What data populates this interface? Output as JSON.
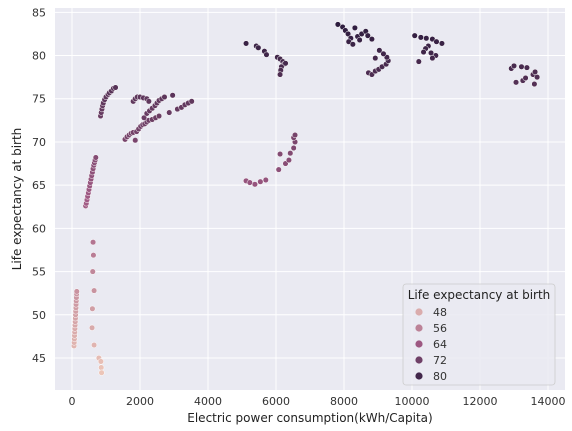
{
  "chart_data": {
    "type": "scatter",
    "xlabel": "Electric power consumption(kWh/Capita)",
    "ylabel": "Life expectancy at birth",
    "xlim": [
      -500,
      14500
    ],
    "ylim": [
      41.3,
      85.5
    ],
    "xticks": [
      0,
      2000,
      4000,
      6000,
      8000,
      10000,
      12000,
      14000
    ],
    "yticks": [
      45,
      50,
      55,
      60,
      65,
      70,
      75,
      80,
      85
    ],
    "grid": true,
    "legend": {
      "title": "Life expectancy at birth",
      "placement": "bottom-right",
      "entries": [
        {
          "label": "48",
          "value": 48
        },
        {
          "label": "56",
          "value": 56
        },
        {
          "label": "64",
          "value": 64
        },
        {
          "label": "72",
          "value": 72
        },
        {
          "label": "80",
          "value": 80
        }
      ]
    },
    "hue_range": [
      43,
      84
    ],
    "colors": {
      "low": "#edc7b9",
      "mid": "#a05a84",
      "high": "#2b1b3d",
      "background": "#eaeaf2",
      "grid": "#ffffff"
    },
    "points": [
      {
        "x": 60,
        "y": 46.4
      },
      {
        "x": 65,
        "y": 46.8
      },
      {
        "x": 70,
        "y": 47.2
      },
      {
        "x": 75,
        "y": 47.6
      },
      {
        "x": 80,
        "y": 48.0
      },
      {
        "x": 85,
        "y": 48.4
      },
      {
        "x": 90,
        "y": 48.8
      },
      {
        "x": 95,
        "y": 49.2
      },
      {
        "x": 100,
        "y": 49.6
      },
      {
        "x": 105,
        "y": 50.0
      },
      {
        "x": 110,
        "y": 50.4
      },
      {
        "x": 115,
        "y": 50.8
      },
      {
        "x": 120,
        "y": 51.2
      },
      {
        "x": 125,
        "y": 51.6
      },
      {
        "x": 130,
        "y": 52.0
      },
      {
        "x": 135,
        "y": 52.4
      },
      {
        "x": 140,
        "y": 52.7
      },
      {
        "x": 790,
        "y": 45.0
      },
      {
        "x": 850,
        "y": 44.6
      },
      {
        "x": 860,
        "y": 43.9
      },
      {
        "x": 870,
        "y": 43.3
      },
      {
        "x": 620,
        "y": 58.4
      },
      {
        "x": 630,
        "y": 56.9
      },
      {
        "x": 610,
        "y": 55.0
      },
      {
        "x": 650,
        "y": 52.8
      },
      {
        "x": 600,
        "y": 50.7
      },
      {
        "x": 590,
        "y": 48.5
      },
      {
        "x": 650,
        "y": 46.5
      },
      {
        "x": 400,
        "y": 62.6
      },
      {
        "x": 420,
        "y": 62.9
      },
      {
        "x": 440,
        "y": 63.3
      },
      {
        "x": 460,
        "y": 63.7
      },
      {
        "x": 480,
        "y": 64.1
      },
      {
        "x": 500,
        "y": 64.5
      },
      {
        "x": 520,
        "y": 64.9
      },
      {
        "x": 540,
        "y": 65.3
      },
      {
        "x": 560,
        "y": 65.7
      },
      {
        "x": 580,
        "y": 66.1
      },
      {
        "x": 600,
        "y": 66.5
      },
      {
        "x": 620,
        "y": 66.9
      },
      {
        "x": 640,
        "y": 67.3
      },
      {
        "x": 660,
        "y": 67.6
      },
      {
        "x": 680,
        "y": 67.9
      },
      {
        "x": 700,
        "y": 68.2
      },
      {
        "x": 840,
        "y": 73.0
      },
      {
        "x": 860,
        "y": 73.4
      },
      {
        "x": 880,
        "y": 73.8
      },
      {
        "x": 900,
        "y": 74.2
      },
      {
        "x": 920,
        "y": 74.5
      },
      {
        "x": 960,
        "y": 74.9
      },
      {
        "x": 1000,
        "y": 75.2
      },
      {
        "x": 1060,
        "y": 75.5
      },
      {
        "x": 1100,
        "y": 75.7
      },
      {
        "x": 1160,
        "y": 75.9
      },
      {
        "x": 1220,
        "y": 76.2
      },
      {
        "x": 1280,
        "y": 76.3
      },
      {
        "x": 1560,
        "y": 70.3
      },
      {
        "x": 1620,
        "y": 70.6
      },
      {
        "x": 1680,
        "y": 70.8
      },
      {
        "x": 1740,
        "y": 71.0
      },
      {
        "x": 1800,
        "y": 71.1
      },
      {
        "x": 1900,
        "y": 71.2
      },
      {
        "x": 1860,
        "y": 70.2
      },
      {
        "x": 1960,
        "y": 71.5
      },
      {
        "x": 2020,
        "y": 71.8
      },
      {
        "x": 2080,
        "y": 72.0
      },
      {
        "x": 2140,
        "y": 72.1
      },
      {
        "x": 2200,
        "y": 72.3
      },
      {
        "x": 2260,
        "y": 72.5
      },
      {
        "x": 2360,
        "y": 72.6
      },
      {
        "x": 2460,
        "y": 72.8
      },
      {
        "x": 2560,
        "y": 73.0
      },
      {
        "x": 2120,
        "y": 72.8
      },
      {
        "x": 2200,
        "y": 73.3
      },
      {
        "x": 2280,
        "y": 73.6
      },
      {
        "x": 2360,
        "y": 73.9
      },
      {
        "x": 2440,
        "y": 74.2
      },
      {
        "x": 2500,
        "y": 74.5
      },
      {
        "x": 2560,
        "y": 74.8
      },
      {
        "x": 2640,
        "y": 75.0
      },
      {
        "x": 2720,
        "y": 75.2
      },
      {
        "x": 2860,
        "y": 73.4
      },
      {
        "x": 2960,
        "y": 75.4
      },
      {
        "x": 3100,
        "y": 73.8
      },
      {
        "x": 3220,
        "y": 74.0
      },
      {
        "x": 3320,
        "y": 74.3
      },
      {
        "x": 3420,
        "y": 74.5
      },
      {
        "x": 3520,
        "y": 74.7
      },
      {
        "x": 1800,
        "y": 74.7
      },
      {
        "x": 1860,
        "y": 75.0
      },
      {
        "x": 1920,
        "y": 75.2
      },
      {
        "x": 2000,
        "y": 75.2
      },
      {
        "x": 2100,
        "y": 75.1
      },
      {
        "x": 2200,
        "y": 75.0
      },
      {
        "x": 2260,
        "y": 74.7
      },
      {
        "x": 5120,
        "y": 65.5
      },
      {
        "x": 5230,
        "y": 65.3
      },
      {
        "x": 5380,
        "y": 65.1
      },
      {
        "x": 5540,
        "y": 65.4
      },
      {
        "x": 5700,
        "y": 65.6
      },
      {
        "x": 6080,
        "y": 66.8
      },
      {
        "x": 6280,
        "y": 67.5
      },
      {
        "x": 6380,
        "y": 67.9
      },
      {
        "x": 6420,
        "y": 68.7
      },
      {
        "x": 6520,
        "y": 69.3
      },
      {
        "x": 6560,
        "y": 70.0
      },
      {
        "x": 6520,
        "y": 70.5
      },
      {
        "x": 6560,
        "y": 70.8
      },
      {
        "x": 6120,
        "y": 68.6
      },
      {
        "x": 5120,
        "y": 81.4
      },
      {
        "x": 5420,
        "y": 81.1
      },
      {
        "x": 5480,
        "y": 80.9
      },
      {
        "x": 5660,
        "y": 80.5
      },
      {
        "x": 5720,
        "y": 80.1
      },
      {
        "x": 6040,
        "y": 79.8
      },
      {
        "x": 6120,
        "y": 79.6
      },
      {
        "x": 6200,
        "y": 79.3
      },
      {
        "x": 6240,
        "y": 79.0
      },
      {
        "x": 6160,
        "y": 78.7
      },
      {
        "x": 6140,
        "y": 78.3
      },
      {
        "x": 6120,
        "y": 77.8
      },
      {
        "x": 6280,
        "y": 79.1
      },
      {
        "x": 7820,
        "y": 83.6
      },
      {
        "x": 7960,
        "y": 83.3
      },
      {
        "x": 8040,
        "y": 82.9
      },
      {
        "x": 8120,
        "y": 82.5
      },
      {
        "x": 8200,
        "y": 82.0
      },
      {
        "x": 8140,
        "y": 81.6
      },
      {
        "x": 8260,
        "y": 81.3
      },
      {
        "x": 8400,
        "y": 82.2
      },
      {
        "x": 8520,
        "y": 82.5
      },
      {
        "x": 8640,
        "y": 82.8
      },
      {
        "x": 8700,
        "y": 82.3
      },
      {
        "x": 8820,
        "y": 81.9
      },
      {
        "x": 8320,
        "y": 83.2
      },
      {
        "x": 8460,
        "y": 81.8
      },
      {
        "x": 8720,
        "y": 78.0
      },
      {
        "x": 8820,
        "y": 77.8
      },
      {
        "x": 8920,
        "y": 78.2
      },
      {
        "x": 9020,
        "y": 78.4
      },
      {
        "x": 9120,
        "y": 78.7
      },
      {
        "x": 9240,
        "y": 79.0
      },
      {
        "x": 9300,
        "y": 79.4
      },
      {
        "x": 9260,
        "y": 79.8
      },
      {
        "x": 9160,
        "y": 80.2
      },
      {
        "x": 9040,
        "y": 80.6
      },
      {
        "x": 8920,
        "y": 79.7
      },
      {
        "x": 10080,
        "y": 82.3
      },
      {
        "x": 10260,
        "y": 82.1
      },
      {
        "x": 10420,
        "y": 82.0
      },
      {
        "x": 10600,
        "y": 81.9
      },
      {
        "x": 10720,
        "y": 81.6
      },
      {
        "x": 10880,
        "y": 81.4
      },
      {
        "x": 10480,
        "y": 81.1
      },
      {
        "x": 10400,
        "y": 80.8
      },
      {
        "x": 10560,
        "y": 80.3
      },
      {
        "x": 10700,
        "y": 80.0
      },
      {
        "x": 10600,
        "y": 79.7
      },
      {
        "x": 10200,
        "y": 79.3
      },
      {
        "x": 10340,
        "y": 80.4
      },
      {
        "x": 12920,
        "y": 78.5
      },
      {
        "x": 13000,
        "y": 78.8
      },
      {
        "x": 13220,
        "y": 78.7
      },
      {
        "x": 13380,
        "y": 78.6
      },
      {
        "x": 13060,
        "y": 76.9
      },
      {
        "x": 13260,
        "y": 77.1
      },
      {
        "x": 13340,
        "y": 77.4
      },
      {
        "x": 13560,
        "y": 77.8
      },
      {
        "x": 13620,
        "y": 78.1
      },
      {
        "x": 13680,
        "y": 77.5
      },
      {
        "x": 13600,
        "y": 76.7
      }
    ]
  }
}
